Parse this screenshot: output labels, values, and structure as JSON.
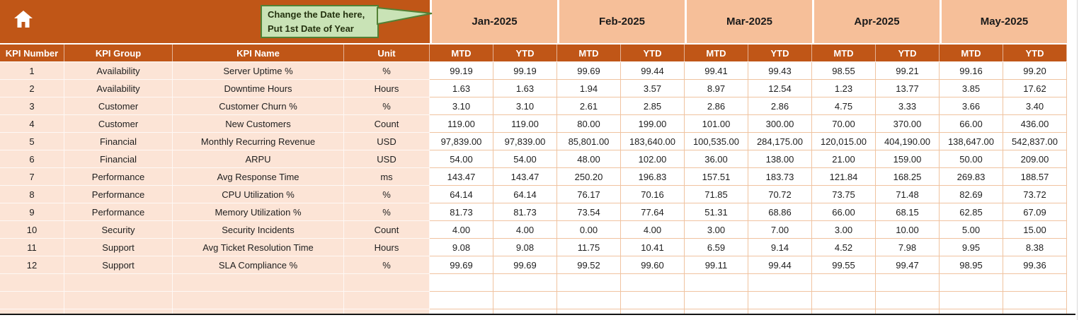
{
  "colors": {
    "rust": "#C05617",
    "salmon": "#F6BF99",
    "peach": "#FCE4D6",
    "grid": "#F0C3A0",
    "callout_bg": "#C9E3B6",
    "callout_border": "#538135",
    "callout_text": "#24320F",
    "text": "#1E1E1E",
    "header_text": "#FFFFFF",
    "bottom_line": "#141414"
  },
  "icons": {
    "home": "house"
  },
  "callout": {
    "line1": "Change the Date here,",
    "line2": "Put 1st Date of Year"
  },
  "months": [
    "Jan-2025",
    "Feb-2025",
    "Mar-2025",
    "Apr-2025",
    "May-2025"
  ],
  "subheaders": [
    "MTD",
    "YTD"
  ],
  "left_headers": [
    "KPI Number",
    "KPI Group",
    "KPI Name",
    "Unit"
  ],
  "rows": [
    {
      "num": "1",
      "group": "Availability",
      "name": "Server Uptime %",
      "unit": "%",
      "values": [
        "99.19",
        "99.19",
        "99.69",
        "99.44",
        "99.41",
        "99.43",
        "98.55",
        "99.21",
        "99.16",
        "99.20"
      ]
    },
    {
      "num": "2",
      "group": "Availability",
      "name": "Downtime Hours",
      "unit": "Hours",
      "values": [
        "1.63",
        "1.63",
        "1.94",
        "3.57",
        "8.97",
        "12.54",
        "1.23",
        "13.77",
        "3.85",
        "17.62"
      ]
    },
    {
      "num": "3",
      "group": "Customer",
      "name": "Customer Churn %",
      "unit": "%",
      "values": [
        "3.10",
        "3.10",
        "2.61",
        "2.85",
        "2.86",
        "2.86",
        "4.75",
        "3.33",
        "3.66",
        "3.40"
      ]
    },
    {
      "num": "4",
      "group": "Customer",
      "name": "New Customers",
      "unit": "Count",
      "values": [
        "119.00",
        "119.00",
        "80.00",
        "199.00",
        "101.00",
        "300.00",
        "70.00",
        "370.00",
        "66.00",
        "436.00"
      ]
    },
    {
      "num": "5",
      "group": "Financial",
      "name": "Monthly Recurring Revenue",
      "unit": "USD",
      "values": [
        "97,839.00",
        "97,839.00",
        "85,801.00",
        "183,640.00",
        "100,535.00",
        "284,175.00",
        "120,015.00",
        "404,190.00",
        "138,647.00",
        "542,837.00"
      ]
    },
    {
      "num": "6",
      "group": "Financial",
      "name": "ARPU",
      "unit": "USD",
      "values": [
        "54.00",
        "54.00",
        "48.00",
        "102.00",
        "36.00",
        "138.00",
        "21.00",
        "159.00",
        "50.00",
        "209.00"
      ]
    },
    {
      "num": "7",
      "group": "Performance",
      "name": "Avg Response Time",
      "unit": "ms",
      "values": [
        "143.47",
        "143.47",
        "250.20",
        "196.83",
        "157.51",
        "183.73",
        "121.84",
        "168.25",
        "269.83",
        "188.57"
      ]
    },
    {
      "num": "8",
      "group": "Performance",
      "name": "CPU Utilization %",
      "unit": "%",
      "values": [
        "64.14",
        "64.14",
        "76.17",
        "70.16",
        "71.85",
        "70.72",
        "73.75",
        "71.48",
        "82.69",
        "73.72"
      ]
    },
    {
      "num": "9",
      "group": "Performance",
      "name": "Memory Utilization %",
      "unit": "%",
      "values": [
        "81.73",
        "81.73",
        "73.54",
        "77.64",
        "51.31",
        "68.86",
        "66.00",
        "68.15",
        "62.85",
        "67.09"
      ]
    },
    {
      "num": "10",
      "group": "Security",
      "name": "Security Incidents",
      "unit": "Count",
      "values": [
        "4.00",
        "4.00",
        "0.00",
        "4.00",
        "3.00",
        "7.00",
        "3.00",
        "10.00",
        "5.00",
        "15.00"
      ]
    },
    {
      "num": "11",
      "group": "Support",
      "name": "Avg Ticket Resolution Time",
      "unit": "Hours",
      "values": [
        "9.08",
        "9.08",
        "11.75",
        "10.41",
        "6.59",
        "9.14",
        "4.52",
        "7.98",
        "9.95",
        "8.38"
      ]
    },
    {
      "num": "12",
      "group": "Support",
      "name": "SLA Compliance %",
      "unit": "%",
      "values": [
        "99.69",
        "99.69",
        "99.52",
        "99.60",
        "99.11",
        "99.44",
        "99.55",
        "99.47",
        "98.95",
        "99.36"
      ]
    }
  ],
  "empty_rows": 3
}
